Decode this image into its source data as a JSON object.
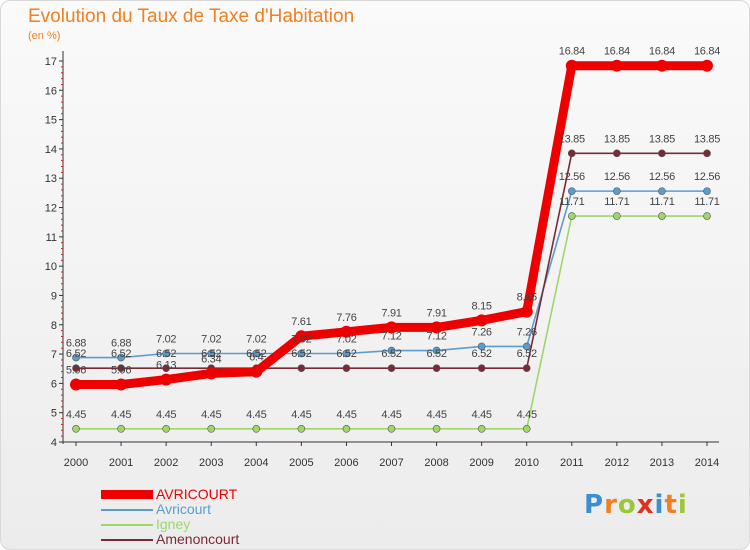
{
  "header": {
    "title": "Evolution du Taux de Taxe d'Habitation",
    "unit": "(en %)"
  },
  "logo": {
    "letters": [
      "P",
      "r",
      "o",
      "x",
      "i",
      "t",
      "i"
    ],
    "colors": [
      "#3a8fd0",
      "#f08020",
      "#9bc83a",
      "#e03020",
      "#3a8fd0",
      "#f08020",
      "#9bc83a"
    ]
  },
  "chart_data": {
    "type": "line",
    "x": [
      "2000",
      "2001",
      "2002",
      "2003",
      "2004",
      "2005",
      "2006",
      "2007",
      "2008",
      "2009",
      "2010",
      "2011",
      "2012",
      "2013",
      "2014"
    ],
    "ylim": [
      4,
      17
    ],
    "yticks": [
      "4",
      "5",
      "6",
      "7",
      "8",
      "9",
      "10",
      "11",
      "12",
      "13",
      "14",
      "15",
      "16",
      "17"
    ],
    "grid": false,
    "legend_position": "bottom-left",
    "series": [
      {
        "name": "AVRICOURT",
        "color": "#ee0000",
        "emphasis": true,
        "values": [
          5.96,
          5.96,
          6.13,
          6.34,
          6.4,
          7.61,
          7.76,
          7.91,
          7.91,
          8.15,
          8.45,
          16.84,
          16.84,
          16.84,
          16.84
        ],
        "labels": [
          "5.96",
          "5.96",
          "6.13",
          "6.34",
          "6.4",
          "7.61",
          "7.76",
          "7.91",
          "7.91",
          "8.15",
          "8.45",
          "16.84",
          "16.84",
          "16.84",
          "16.84"
        ]
      },
      {
        "name": "Avricourt",
        "color": "#5b9ccf",
        "emphasis": false,
        "values": [
          6.88,
          6.88,
          7.02,
          7.02,
          7.02,
          7.02,
          7.02,
          7.12,
          7.12,
          7.26,
          7.26,
          12.56,
          12.56,
          12.56,
          12.56
        ],
        "labels": [
          "6.88",
          "6.88",
          "7.02",
          "7.02",
          "7.02",
          "7.02",
          "7.02",
          "7.12",
          "7.12",
          "7.26",
          "7.26",
          "12.56",
          "12.56",
          "12.56",
          "12.56"
        ]
      },
      {
        "name": "Igney",
        "color": "#9ed66c",
        "emphasis": false,
        "values": [
          4.45,
          4.45,
          4.45,
          4.45,
          4.45,
          4.45,
          4.45,
          4.45,
          4.45,
          4.45,
          4.45,
          11.71,
          11.71,
          11.71,
          11.71
        ],
        "labels": [
          "4.45",
          "4.45",
          "4.45",
          "4.45",
          "4.45",
          "4.45",
          "4.45",
          "4.45",
          "4.45",
          "4.45",
          "4.45",
          "11.71",
          "11.71",
          "11.71",
          "11.71"
        ]
      },
      {
        "name": "Amenoncourt",
        "color": "#7a2a36",
        "emphasis": false,
        "values": [
          6.52,
          6.52,
          6.52,
          6.52,
          6.52,
          6.52,
          6.52,
          6.52,
          6.52,
          6.52,
          6.52,
          13.85,
          13.85,
          13.85,
          13.85
        ],
        "labels": [
          "6.52",
          "6.52",
          "6.52",
          "6.52",
          "6.52",
          "6.52",
          "6.52",
          "6.52",
          "6.52",
          "6.52",
          "6.52",
          "13.85",
          "13.85",
          "13.85",
          "13.85"
        ]
      }
    ]
  }
}
